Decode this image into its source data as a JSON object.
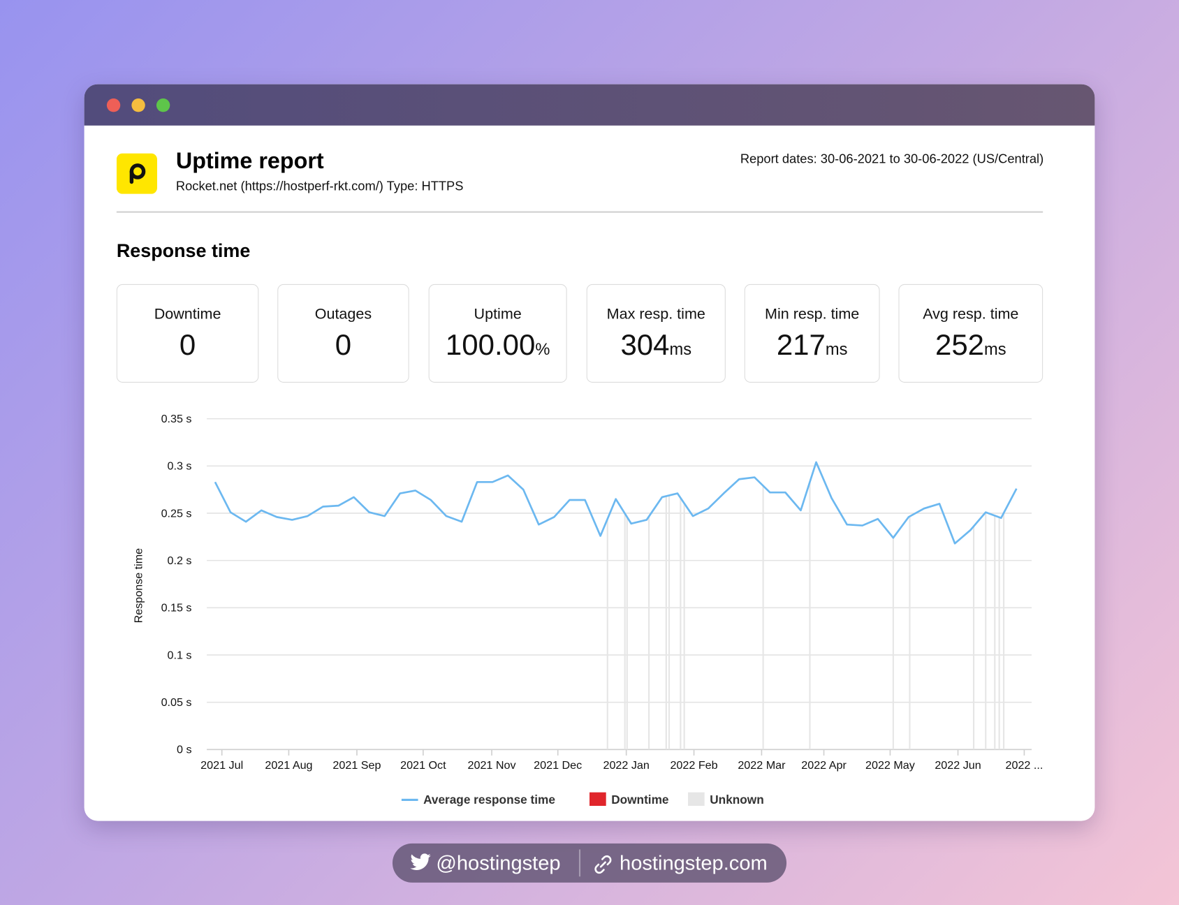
{
  "window": {
    "header": {
      "title": "Uptime report",
      "subtitle": "Rocket.net (https://hostperf-rkt.com/) Type: HTTPS",
      "report_dates": "Report dates: 30-06-2021 to 30-06-2022 (US/Central)"
    },
    "section_title": "Response time",
    "stats": [
      {
        "label": "Downtime",
        "value": "0"
      },
      {
        "label": "Outages",
        "value": "0"
      },
      {
        "label": "Uptime",
        "value": "100.00",
        "unit": "%"
      },
      {
        "label": "Max resp. time",
        "value": "304",
        "unit": "ms"
      },
      {
        "label": "Min resp. time",
        "value": "217",
        "unit": "ms"
      },
      {
        "label": "Avg resp. time",
        "value": "252",
        "unit": "ms"
      }
    ]
  },
  "chart_data": {
    "type": "line",
    "y_label": "Response time",
    "xlim": [
      -0.54,
      52.98
    ],
    "ylim": [
      0,
      0.35
    ],
    "xticks": [
      {
        "value": 0.44,
        "label": "2021 Jul"
      },
      {
        "value": 4.78,
        "label": "2021 Aug"
      },
      {
        "value": 9.2,
        "label": "2021 Sep"
      },
      {
        "value": 13.5,
        "label": "2021 Oct"
      },
      {
        "value": 17.95,
        "label": "2021 Nov"
      },
      {
        "value": 22.24,
        "label": "2021 Dec"
      },
      {
        "value": 26.68,
        "label": "2022 Jan"
      },
      {
        "value": 31.07,
        "label": "2022 Feb"
      },
      {
        "value": 35.46,
        "label": "2022 Mar"
      },
      {
        "value": 39.5,
        "label": "2022 Apr"
      },
      {
        "value": 43.8,
        "label": "2022 May"
      },
      {
        "value": 48.2,
        "label": "2022 Jun"
      },
      {
        "value": 52.5,
        "label": "2022 ..."
      }
    ],
    "yticks": [
      {
        "value": 0,
        "label": "0 s"
      },
      {
        "value": 0.05,
        "label": "0.05 s"
      },
      {
        "value": 0.1,
        "label": "0.1 s"
      },
      {
        "value": 0.15,
        "label": "0.15 s"
      },
      {
        "value": 0.2,
        "label": "0.2 s"
      },
      {
        "value": 0.25,
        "label": "0.25 s"
      },
      {
        "value": 0.3,
        "label": "0.3 s"
      },
      {
        "value": 0.35,
        "label": "0.35 s"
      }
    ],
    "grid": true,
    "series": [
      {
        "name": "Average response time",
        "color": "#6cb8f0",
        "x": [
          0,
          1,
          2,
          3,
          4,
          5,
          6,
          7,
          8,
          9,
          10,
          11,
          12,
          13,
          14,
          15,
          16,
          17,
          18,
          19,
          20,
          21,
          22,
          23,
          24,
          25,
          26,
          27,
          28,
          29,
          30,
          31,
          32,
          33,
          34,
          35,
          36,
          37,
          38,
          39,
          40,
          41,
          42,
          43,
          44,
          45,
          46,
          47,
          48,
          49,
          50,
          51,
          52
        ],
        "values": [
          0.283,
          0.251,
          0.241,
          0.253,
          0.246,
          0.243,
          0.247,
          0.257,
          0.258,
          0.267,
          0.251,
          0.247,
          0.271,
          0.274,
          0.264,
          0.247,
          0.241,
          0.283,
          0.283,
          0.29,
          0.275,
          0.238,
          0.246,
          0.264,
          0.264,
          0.226,
          0.265,
          0.239,
          0.243,
          0.267,
          0.271,
          0.247,
          0.255,
          0.271,
          0.286,
          0.288,
          0.272,
          0.272,
          0.253,
          0.304,
          0.266,
          0.238,
          0.237,
          0.244,
          0.224,
          0.246,
          0.255,
          0.26,
          0.218,
          0.232,
          0.251,
          0.245,
          0.276
        ]
      }
    ],
    "downtime": {
      "name": "Downtime",
      "color": "#e0252b"
    },
    "unknown": {
      "name": "Unknown",
      "color": "#e6e6e6",
      "x": [
        25.46,
        26.59,
        26.73,
        28.15,
        29.27,
        29.46,
        30.2,
        30.44,
        35.56,
        38.59,
        44.0,
        45.07,
        49.22,
        50.0,
        50.59,
        50.88,
        51.17
      ]
    }
  },
  "footer": {
    "twitter": "@hostingstep",
    "site": "hostingstep.com"
  }
}
